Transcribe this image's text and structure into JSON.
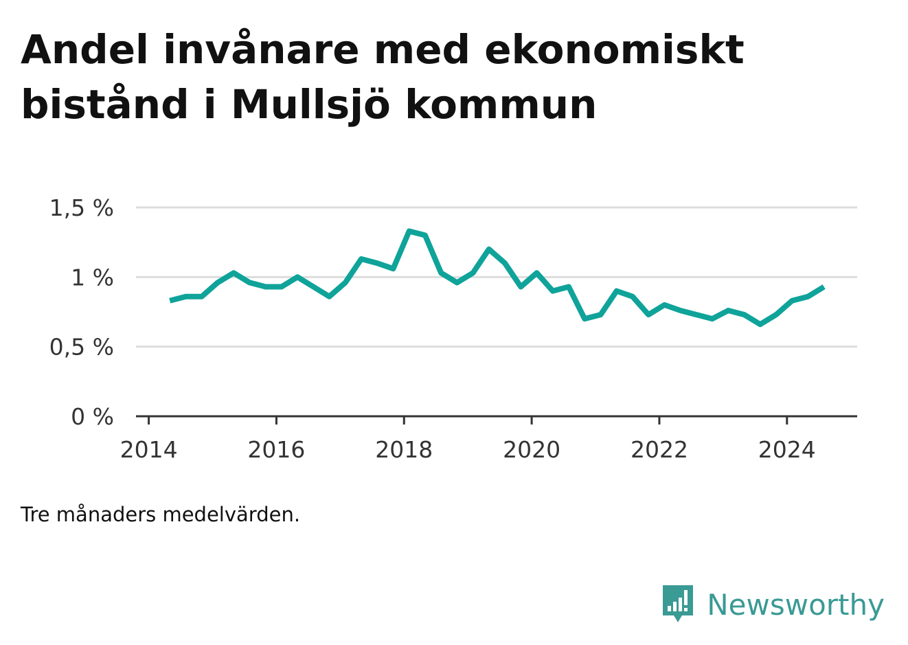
{
  "title_line1": "Andel invånare med ekonomiskt",
  "title_line2": "bistånd i Mullsjö kommun",
  "note": "Tre månaders medelvärden.",
  "brand": {
    "name": "Newsworthy",
    "color": "#3a9a94"
  },
  "chart_data": {
    "type": "line",
    "title": "Andel invånare med ekonomiskt bistånd i Mullsjö kommun",
    "xlabel": "",
    "ylabel": "",
    "x": [
      2014.33,
      2014.58,
      2014.83,
      2015.08,
      2015.33,
      2015.58,
      2015.83,
      2016.08,
      2016.33,
      2016.58,
      2016.83,
      2017.08,
      2017.33,
      2017.58,
      2017.83,
      2018.08,
      2018.33,
      2018.58,
      2018.83,
      2019.08,
      2019.33,
      2019.58,
      2019.83,
      2020.08,
      2020.33,
      2020.58,
      2020.83,
      2021.08,
      2021.33,
      2021.58,
      2021.83,
      2022.08,
      2022.33,
      2022.58,
      2022.83,
      2023.08,
      2023.33,
      2023.58,
      2023.83,
      2024.08,
      2024.33,
      2024.58
    ],
    "series": [
      {
        "name": "Andel invånare med ekonomiskt bistånd",
        "color": "#0fa39a",
        "values": [
          0.83,
          0.86,
          0.86,
          0.96,
          1.03,
          0.96,
          0.93,
          0.93,
          1.0,
          0.93,
          0.86,
          0.96,
          1.13,
          1.1,
          1.06,
          1.33,
          1.3,
          1.03,
          0.96,
          1.03,
          1.2,
          1.1,
          0.93,
          1.03,
          0.9,
          0.93,
          0.7,
          0.73,
          0.9,
          0.86,
          0.73,
          0.8,
          0.76,
          0.73,
          0.7,
          0.76,
          0.73,
          0.66,
          0.73,
          0.83,
          0.86,
          0.93
        ]
      }
    ],
    "xlim": [
      2013.8,
      2025.1
    ],
    "ylim": [
      0,
      1.5
    ],
    "x_ticks": [
      2014,
      2016,
      2018,
      2020,
      2022,
      2024
    ],
    "x_tick_labels": [
      "2014",
      "2016",
      "2018",
      "2020",
      "2022",
      "2024"
    ],
    "y_ticks": [
      0,
      0.5,
      1,
      1.5
    ],
    "y_tick_labels": [
      "0 %",
      "0,5 %",
      "1 %",
      "1,5 %"
    ],
    "grid": true,
    "legend": "none"
  }
}
